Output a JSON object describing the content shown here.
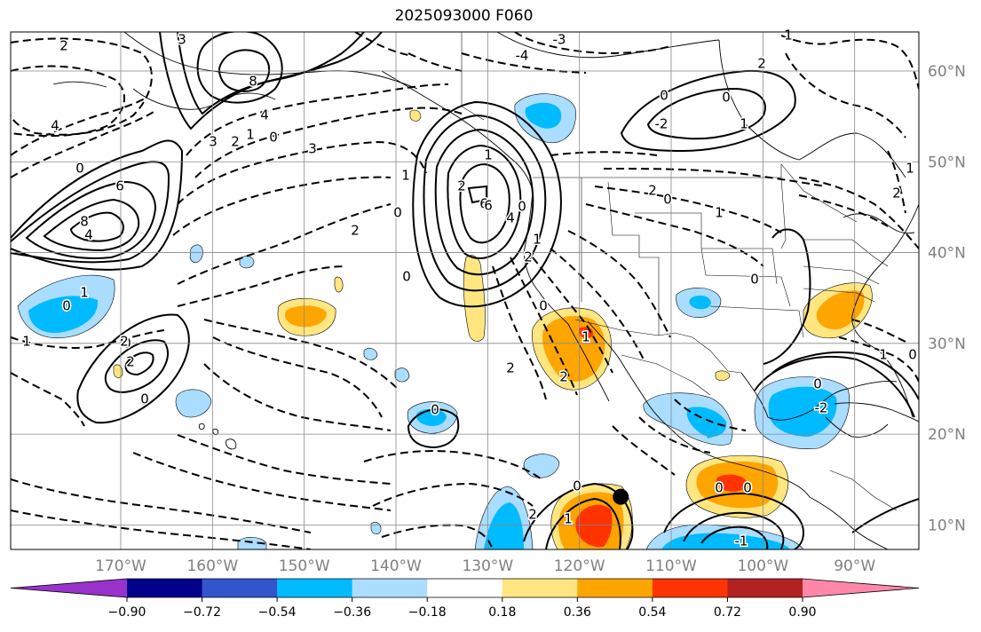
{
  "title": "2025093000 F060",
  "map": {
    "lon_range": [
      -182,
      -83
    ],
    "lat_range": [
      7.3,
      64.3
    ],
    "lon_gridlines": [
      -170,
      -160,
      -150,
      -140,
      -130,
      -120,
      -110,
      -100,
      -90
    ],
    "lat_gridlines": [
      10,
      20,
      30,
      40,
      50,
      60
    ],
    "lon_labels": [
      "170°W",
      "160°W",
      "150°W",
      "140°W",
      "130°W",
      "120°W",
      "110°W",
      "100°W",
      "90°W"
    ],
    "lat_labels": [
      "10°N",
      "20°N",
      "30°N",
      "40°N",
      "50°N",
      "60°N"
    ],
    "grid": true
  },
  "colorbar": {
    "orientation": "horizontal",
    "extend": "both",
    "levels": [
      -0.9,
      -0.72,
      -0.54,
      -0.36,
      -0.18,
      0.18,
      0.36,
      0.54,
      0.72,
      0.9
    ],
    "tick_labels": [
      "−0.90",
      "−0.72",
      "−0.54",
      "−0.36",
      "−0.18",
      "0.18",
      "0.36",
      "0.54",
      "0.72",
      "0.90"
    ],
    "colors": [
      "#9933cc",
      "#000088",
      "#3355cc",
      "#00bbff",
      "#aaddff",
      "#ffffff",
      "#ffe680",
      "#ffa500",
      "#ff3300",
      "#b22222",
      "#ff88aa"
    ]
  },
  "contour_labels": [
    "2",
    "3",
    "4",
    "8",
    "6",
    "4",
    "8",
    "3",
    "2",
    "1",
    "0",
    "4",
    "0",
    "6",
    "1",
    "0",
    "-3",
    "-4",
    "2",
    "0",
    "1",
    "2",
    "3",
    "0",
    "6",
    "4",
    "2",
    "1",
    "0",
    "2",
    "1",
    "2",
    "0",
    "0",
    "-2",
    "0",
    "1",
    "2",
    "1",
    "0",
    "1",
    "0",
    "-2",
    "2",
    "0",
    "2",
    "0",
    "0",
    "2",
    "1",
    "0",
    "1",
    "0",
    "2",
    "2",
    "1",
    "-1",
    "0",
    "0",
    "1",
    "0",
    "1"
  ],
  "markers": [
    {
      "name": "storm-center",
      "lon": -115.5,
      "lat": 13.1
    }
  ]
}
